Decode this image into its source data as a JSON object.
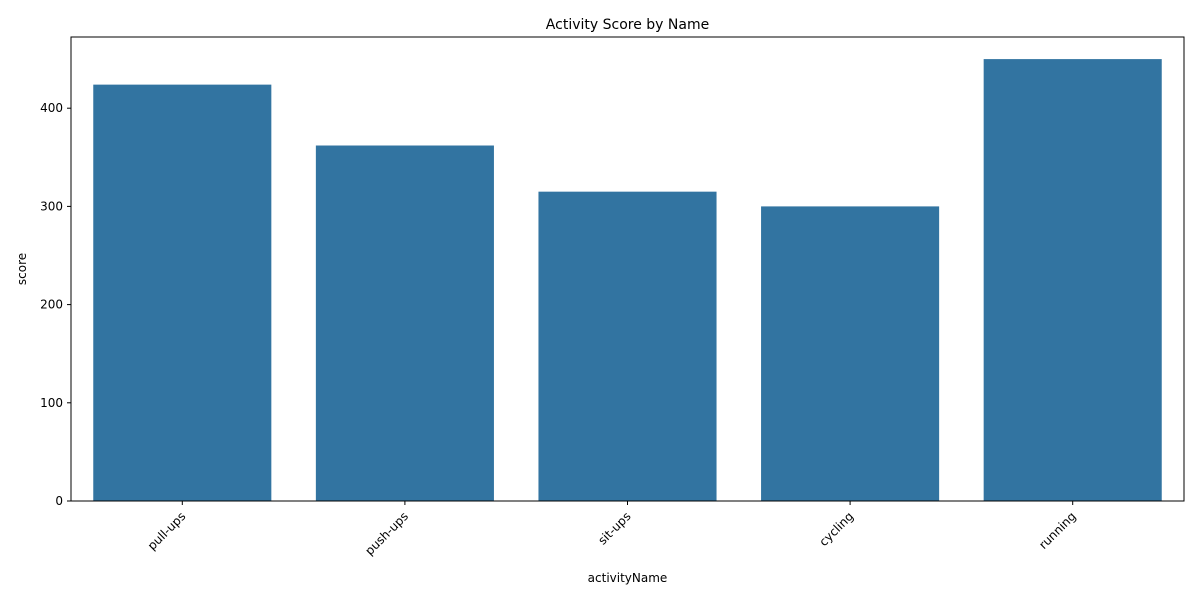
{
  "chart_data": {
    "type": "bar",
    "title": "Activity Score by Name",
    "xlabel": "activityName",
    "ylabel": "score",
    "categories": [
      "pull-ups",
      "push-ups",
      "sit-ups",
      "cycling",
      "running"
    ],
    "values": [
      424,
      362,
      315,
      300,
      450
    ],
    "ylim": [
      0,
      472.5
    ],
    "yticks": [
      0,
      100,
      200,
      300,
      400
    ],
    "xtick_rotation_deg": 45,
    "grid": false,
    "legend": "none",
    "bar_color": "#3274a1"
  }
}
